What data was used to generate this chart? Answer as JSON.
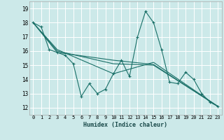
{
  "title": "",
  "xlabel": "Humidex (Indice chaleur)",
  "ylabel": "",
  "background_color": "#cce9e9",
  "grid_color": "#ffffff",
  "line_color": "#1a7068",
  "xlim": [
    -0.5,
    23.5
  ],
  "ylim": [
    11.5,
    19.5
  ],
  "xticks": [
    0,
    1,
    2,
    3,
    4,
    5,
    6,
    7,
    8,
    9,
    10,
    11,
    12,
    13,
    14,
    15,
    16,
    17,
    18,
    19,
    20,
    21,
    22,
    23
  ],
  "yticks": [
    12,
    13,
    14,
    15,
    16,
    17,
    18,
    19
  ],
  "series0": [
    18.0,
    17.7,
    16.1,
    15.9,
    15.7,
    15.1,
    12.8,
    13.7,
    13.0,
    13.3,
    14.4,
    15.35,
    14.2,
    17.0,
    18.8,
    18.0,
    16.1,
    13.8,
    13.7,
    14.5,
    14.0,
    13.0,
    12.4,
    12.1
  ],
  "trend_lines": [
    {
      "x": [
        0,
        3,
        10,
        15,
        23
      ],
      "y": [
        18.0,
        16.1,
        14.4,
        15.2,
        12.1
      ]
    },
    {
      "x": [
        0,
        3,
        10,
        15,
        23
      ],
      "y": [
        18.0,
        15.9,
        15.35,
        15.05,
        12.1
      ]
    },
    {
      "x": [
        0,
        3,
        10,
        15,
        23
      ],
      "y": [
        18.0,
        16.0,
        15.1,
        15.0,
        12.1
      ]
    }
  ]
}
